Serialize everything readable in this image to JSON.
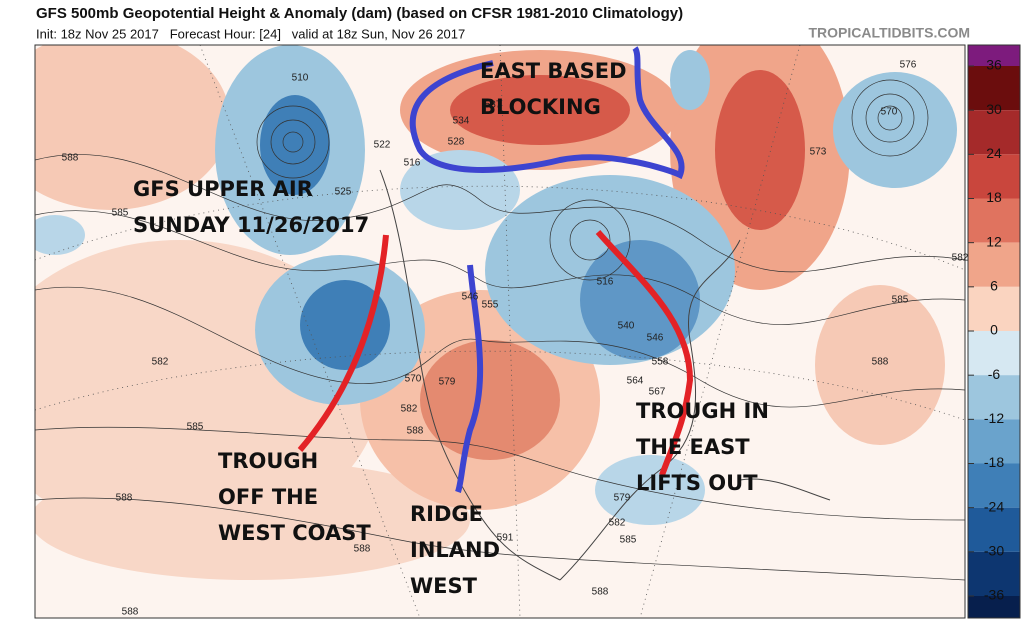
{
  "header": {
    "title": "GFS 500mb Geopotential Height & Anomaly (dam) (based on CFSR 1981-2010 Climatology)",
    "subtitle": "Init: 18z Nov 25 2017   Forecast Hour: [24]   valid at 18z Sun, Nov 26 2017",
    "credit": "TROPICALTIDBITS.COM"
  },
  "annotations": [
    {
      "lines": [
        "EAST BASED",
        "BLOCKING"
      ]
    },
    {
      "lines": [
        "GFS UPPER AIR",
        "SUNDAY 11/26/2017"
      ]
    },
    {
      "lines": [
        "TROUGH",
        "OFF THE",
        "WEST COAST"
      ]
    },
    {
      "lines": [
        "RIDGE",
        "INLAND",
        "WEST"
      ]
    },
    {
      "lines": [
        "TROUGH IN",
        "THE EAST",
        "LIFTS OUT"
      ]
    }
  ],
  "colorbar": {
    "ticks": [
      36,
      30,
      24,
      18,
      12,
      6,
      0,
      -6,
      -12,
      -18,
      -24,
      -30,
      -36
    ],
    "colors": [
      "#6b0d0d",
      "#a52a2a",
      "#c9463d",
      "#e0735f",
      "#f0a58a",
      "#fad4c0",
      "#d6e8f2",
      "#9dc6de",
      "#6aa3cc",
      "#3f7fb7",
      "#1f5a9a",
      "#0d3670"
    ],
    "top_color": "#7d1b7d",
    "bottom_color": "#071f4d"
  },
  "contour_labels": [
    510,
    522,
    516,
    525,
    528,
    534,
    537,
    582,
    585,
    588,
    576,
    570,
    573,
    588,
    585,
    582,
    585,
    588,
    588,
    588,
    591,
    585,
    582,
    579,
    588,
    546,
    555,
    564,
    567,
    579,
    570,
    582,
    588,
    516,
    540,
    546,
    558
  ]
}
